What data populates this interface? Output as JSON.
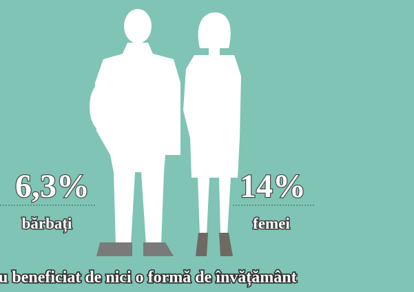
{
  "items": [
    {
      "value": "6,3%",
      "label": "bărbați"
    },
    {
      "value": "14%",
      "label": "femei"
    }
  ],
  "caption": "au beneficiat de nici o formă de învățământ"
}
